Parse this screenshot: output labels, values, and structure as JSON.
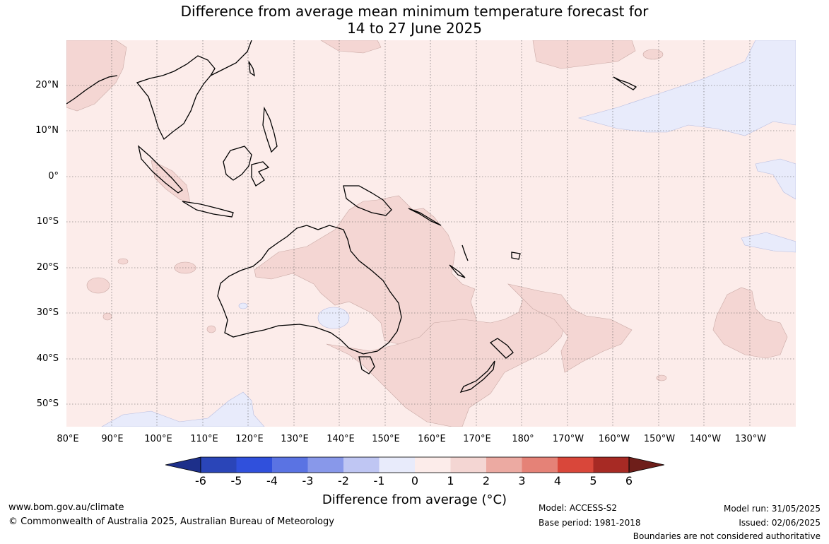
{
  "title_line1": "Difference from average mean minimum temperature forecast for",
  "title_line2": "14 to 27 June 2025",
  "lat_labels": [
    "20°N",
    "10°N",
    "0°",
    "10°S",
    "20°S",
    "30°S",
    "40°S",
    "50°S"
  ],
  "lon_labels": [
    "80°E",
    "90°E",
    "100°E",
    "110°E",
    "120°E",
    "130°E",
    "140°E",
    "150°E",
    "160°E",
    "170°E",
    "180°",
    "170°W",
    "160°W",
    "150°W",
    "140°W",
    "130°W"
  ],
  "colorbar": {
    "ticks": [
      "-6",
      "-5",
      "-4",
      "-3",
      "-2",
      "-1",
      "0",
      "1",
      "2",
      "3",
      "4",
      "5",
      "6"
    ],
    "colors": [
      "#1d2f8a",
      "#2a45b8",
      "#3050dc",
      "#5a73e3",
      "#8898ea",
      "#bfc6f3",
      "#e8ebfb",
      "#fcecea",
      "#f4d6d3",
      "#ecaaa2",
      "#e58277",
      "#d9473a",
      "#a72a24",
      "#6e1e1a"
    ],
    "label": "Difference from average (°C)"
  },
  "footer": {
    "site": "www.bom.gov.au/climate",
    "copyright": "© Commonwealth of Australia 2025, Australian Bureau of Meteorology",
    "model": "Model: ACCESS-S2",
    "base_period": "Base period: 1981-2018",
    "model_run": "Model run: 31/05/2025",
    "issued": "Issued: 02/06/2025",
    "disclaimer": "Boundaries are not considered authoritative"
  }
}
